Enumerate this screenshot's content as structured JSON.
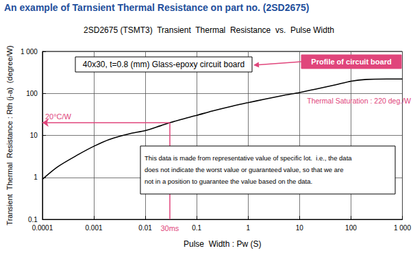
{
  "chart_data": {
    "type": "line",
    "title": "An example of Tarnsient Thermal Resistance on part no. (2SD2675)",
    "subtitle": "2SD2675 (TSMT3)  Transient  Thermal  Resistance  vs.  Pulse Width",
    "x_label": "Pulse  Width : Pw (S)",
    "y_label": "Transient  Thermal  Resistance : Rth (j-a)  (degree/W)",
    "x": [
      0.0001,
      0.0002,
      0.0005,
      0.001,
      0.002,
      0.005,
      0.01,
      0.02,
      0.03,
      0.05,
      0.1,
      0.2,
      0.5,
      1,
      2,
      5,
      10,
      20,
      50,
      100,
      200,
      500,
      1000
    ],
    "values": [
      0.9,
      1.8,
      3.5,
      5.5,
      8,
      11,
      13,
      17,
      20,
      24,
      30,
      38,
      50,
      60,
      72,
      90,
      105,
      125,
      160,
      195,
      215,
      220,
      220
    ],
    "color": "#000000",
    "log": true,
    "grid": true,
    "xlim": [
      0.0001,
      1000
    ],
    "xticks": [
      0.0001,
      0.001,
      0.01,
      0.1,
      1,
      10,
      100,
      {
        "value": 1000,
        "label": "1 000"
      }
    ],
    "ylim": [
      0.1,
      1000
    ],
    "yticks": [
      0.1,
      1,
      10,
      100,
      {
        "value": 1000,
        "label": "1 000"
      }
    ],
    "annotations": [
      {
        "text": "40x30, t=0.8 (mm) Glass-epoxy circuit board"
      },
      {
        "text": "Profile of circuit board"
      },
      {
        "text": "Thermal Saturation : 220 deg./W",
        "y": 220
      },
      {
        "text": "20°C/W",
        "x": 0.03,
        "y": 20
      },
      {
        "text": "30ms",
        "x": 0.03,
        "y": 20
      },
      {
        "text": [
          "This data is made from representative value of specific lot.  i.e., the data",
          "does not indicate the worst value or guaranteed value, so that we are",
          "not in a position to guarantee the value based on the data."
        ]
      }
    ]
  }
}
